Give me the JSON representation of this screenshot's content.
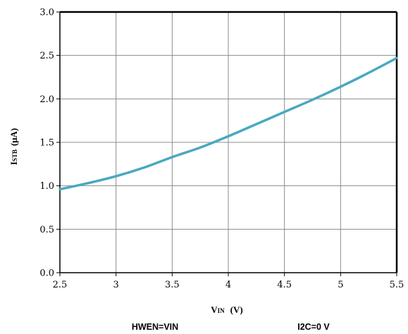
{
  "chart_data": {
    "type": "line",
    "x": [
      2.5,
      2.75,
      3.0,
      3.25,
      3.5,
      3.75,
      4.0,
      4.25,
      4.5,
      4.75,
      5.0,
      5.25,
      5.5
    ],
    "series": [
      {
        "values": [
          0.96,
          1.03,
          1.11,
          1.21,
          1.33,
          1.44,
          1.57,
          1.71,
          1.85,
          1.99,
          2.14,
          2.3,
          2.47
        ]
      }
    ],
    "xlim": [
      2.5,
      5.5
    ],
    "ylim": [
      0.0,
      3.0
    ],
    "xticks": [
      "2.5",
      "3",
      "3.5",
      "4",
      "4.5",
      "5",
      "5.5"
    ],
    "yticks": [
      "0.0",
      "0.5",
      "1.0",
      "1.5",
      "2.0",
      "2.5",
      "3.0"
    ],
    "xlabel": {
      "main": "V",
      "sub": "IN",
      "unit": "(V)"
    },
    "ylabel": {
      "main": "I",
      "sub": "STB",
      "unit": "(μA)"
    },
    "grid": true,
    "line_color": "#4aa8c0"
  },
  "conditions": {
    "left": "HWEN=VIN",
    "right": "I2C=0 V"
  }
}
